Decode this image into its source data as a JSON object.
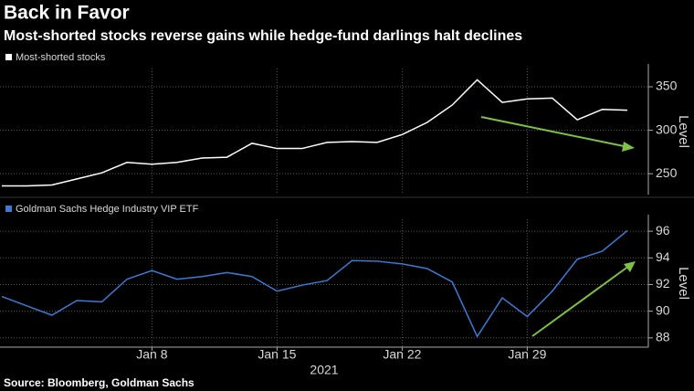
{
  "title": "Back in Favor",
  "subtitle": "Most-shorted stocks reverse gains while hedge-fund darlings halt declines",
  "source": "Source: Bloomberg, Goldman Sachs",
  "chart_data": [
    {
      "type": "line",
      "series": [
        {
          "name": "Most-shorted stocks",
          "color": "#ffffff",
          "values": [
            236,
            236,
            237,
            244,
            251,
            263,
            261,
            263,
            268,
            269,
            285,
            279,
            279,
            286,
            287,
            286,
            295,
            309,
            329,
            358,
            332,
            336,
            337,
            312,
            324,
            323
          ]
        }
      ],
      "ylim": [
        226,
        371
      ],
      "yticks": [
        250,
        300,
        350
      ],
      "ylabel": "Level",
      "grid": true
    },
    {
      "type": "line",
      "categories": [
        null,
        null,
        null,
        null,
        null,
        null,
        "Jan 8",
        null,
        null,
        null,
        null,
        "Jan 15",
        null,
        null,
        null,
        null,
        "Jan 22",
        null,
        null,
        null,
        null,
        "Jan 29",
        null,
        null,
        null,
        null
      ],
      "xlabel": "2021",
      "series": [
        {
          "name": "Goldman Sachs Hedge Industry VIP ETF",
          "color": "#3a7bd5",
          "values": [
            91.1,
            90.4,
            89.7,
            90.8,
            90.7,
            92.4,
            93.05,
            92.4,
            92.6,
            92.9,
            92.6,
            91.5,
            91.95,
            92.3,
            93.8,
            93.75,
            93.55,
            93.2,
            92.2,
            88.1,
            91.0,
            89.6,
            91.5,
            93.9,
            94.5,
            96.05
          ]
        }
      ],
      "ylim": [
        87.3,
        96.9
      ],
      "yticks": [
        88,
        90,
        92,
        94,
        96
      ],
      "ylabel": "Level",
      "grid": true
    }
  ]
}
